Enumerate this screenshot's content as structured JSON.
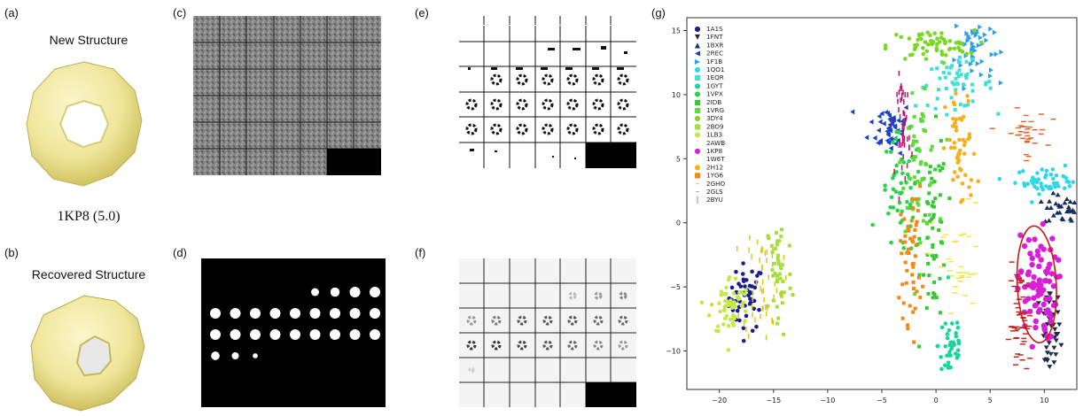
{
  "labels": {
    "a": "(a)",
    "b": "(b)",
    "c": "(c)",
    "d": "(d)",
    "e": "(e)",
    "f": "(f)",
    "g": "(g)"
  },
  "captions": {
    "new_structure": "New Structure",
    "recovered_structure": "Recovered Structure",
    "structure_id": "1KP8 (5.0)"
  },
  "colors": {
    "ring_fill": "#f3ed9e",
    "ring_shade": "#c9bd55",
    "highlight_ellipse": "#d01515"
  },
  "panel_d_blobs": [
    [
      0,
      0,
      0,
      0,
      0,
      0.6,
      0.8,
      1,
      1
    ],
    [
      1,
      1,
      1,
      1,
      1,
      1,
      1,
      1,
      1
    ],
    [
      1,
      1,
      1,
      1,
      1,
      1,
      1,
      1,
      1
    ],
    [
      0.7,
      0.5,
      0.2,
      0,
      0,
      0,
      0,
      0,
      0
    ]
  ],
  "chart_data": {
    "type": "scatter",
    "xlim": [
      -23,
      13
    ],
    "ylim": [
      -13,
      16
    ],
    "xticks": [
      -20,
      -15,
      -10,
      -5,
      0,
      5,
      10
    ],
    "yticks": [
      -10,
      -5,
      0,
      5,
      10,
      15
    ],
    "legend_position": "top-left",
    "series": [
      {
        "name": "1A1S",
        "marker": "●",
        "color": "#1b1f8c",
        "cx": -17.5,
        "cy": -5.8,
        "sx": 0.8,
        "sy": 1.3,
        "n": 50
      },
      {
        "name": "1FNT",
        "marker": "▼",
        "color": "#1f2a44",
        "cx": 10.5,
        "cy": -8.5,
        "sx": 0.5,
        "sy": 1.8,
        "n": 40
      },
      {
        "name": "1BXR",
        "marker": "▲",
        "color": "#13315c",
        "cx": 12.0,
        "cy": 1.0,
        "sx": 1.0,
        "sy": 0.6,
        "n": 40
      },
      {
        "name": "2REC",
        "marker": "◀",
        "color": "#1940c8",
        "cx": -4.2,
        "cy": 7.5,
        "sx": 1.0,
        "sy": 1.0,
        "n": 50
      },
      {
        "name": "1F1B",
        "marker": "▶",
        "color": "#2aa0e8",
        "cx": 3.5,
        "cy": 13.7,
        "sx": 0.9,
        "sy": 1.4,
        "n": 50
      },
      {
        "name": "1QO1",
        "marker": "●",
        "color": "#2fd7e8",
        "cx": 10.5,
        "cy": 3.3,
        "sx": 1.6,
        "sy": 0.5,
        "n": 50
      },
      {
        "name": "1EQR",
        "marker": "■",
        "color": "#3fe0d4",
        "cx": 1.7,
        "cy": 10.8,
        "sx": 1.8,
        "sy": 0.9,
        "n": 50
      },
      {
        "name": "1GYT",
        "marker": "●",
        "color": "#16d79a",
        "cx": 1.4,
        "cy": -9.5,
        "sx": 0.6,
        "sy": 1.6,
        "n": 40
      },
      {
        "name": "1VPX",
        "marker": "●",
        "color": "#29d54a",
        "cx": -3.2,
        "cy": 2.0,
        "sx": 1.0,
        "sy": 2.4,
        "n": 55
      },
      {
        "name": "2IDB",
        "marker": "■",
        "color": "#35c832",
        "cx": -0.2,
        "cy": -0.5,
        "sx": 0.6,
        "sy": 3.6,
        "n": 60
      },
      {
        "name": "1VRG",
        "marker": "■",
        "color": "#63d83a",
        "cx": -1.5,
        "cy": 4.5,
        "sx": 0.8,
        "sy": 2.5,
        "n": 55
      },
      {
        "name": "3DY4",
        "marker": "●",
        "color": "#7ad824",
        "cx": -0.5,
        "cy": 13.8,
        "sx": 2.0,
        "sy": 0.6,
        "n": 60
      },
      {
        "name": "2BO9",
        "marker": "■",
        "color": "#a5e03a",
        "cx": -14.5,
        "cy": -4.0,
        "sx": 0.6,
        "sy": 2.6,
        "n": 45
      },
      {
        "name": "1LB3",
        "marker": "●",
        "color": "#c6e84a",
        "cx": -19.0,
        "cy": -6.5,
        "sx": 0.9,
        "sy": 1.2,
        "n": 55
      },
      {
        "name": "2AWB",
        "marker": "'",
        "color": "#d9c81a",
        "cx": -16.0,
        "cy": -4.5,
        "sx": 0.9,
        "sy": 2.3,
        "n": 50
      },
      {
        "name": "1KP8",
        "marker": "●",
        "color": "#d81fd8",
        "cx": 9.3,
        "cy": -5.0,
        "sx": 0.9,
        "sy": 2.1,
        "n": 80
      },
      {
        "name": "1W6T",
        "marker": "-",
        "color": "#f2e64a",
        "cx": 2.0,
        "cy": -3.5,
        "sx": 1.2,
        "sy": 2.5,
        "n": 35
      },
      {
        "name": "2H12",
        "marker": "●",
        "color": "#f5b01a",
        "cx": 2.3,
        "cy": 5.5,
        "sx": 0.7,
        "sy": 2.4,
        "n": 50
      },
      {
        "name": "1YG6",
        "marker": "■",
        "color": "#f08a12",
        "cx": -2.3,
        "cy": -2.5,
        "sx": 0.5,
        "sy": 2.6,
        "n": 50
      },
      {
        "name": "2GHO",
        "marker": "–",
        "color": "#e6662b",
        "cx": 8.2,
        "cy": 7.0,
        "sx": 1.0,
        "sy": 0.9,
        "n": 35
      },
      {
        "name": "2GLS",
        "marker": "–",
        "color": "#c2281b",
        "cx": 7.8,
        "cy": -8.0,
        "sx": 0.5,
        "sy": 2.2,
        "n": 50
      },
      {
        "name": "2BYU",
        "marker": "|",
        "color": "#c0126f",
        "cx": -3.0,
        "cy": 7.5,
        "sx": 0.3,
        "sy": 2.0,
        "n": 45
      }
    ]
  }
}
